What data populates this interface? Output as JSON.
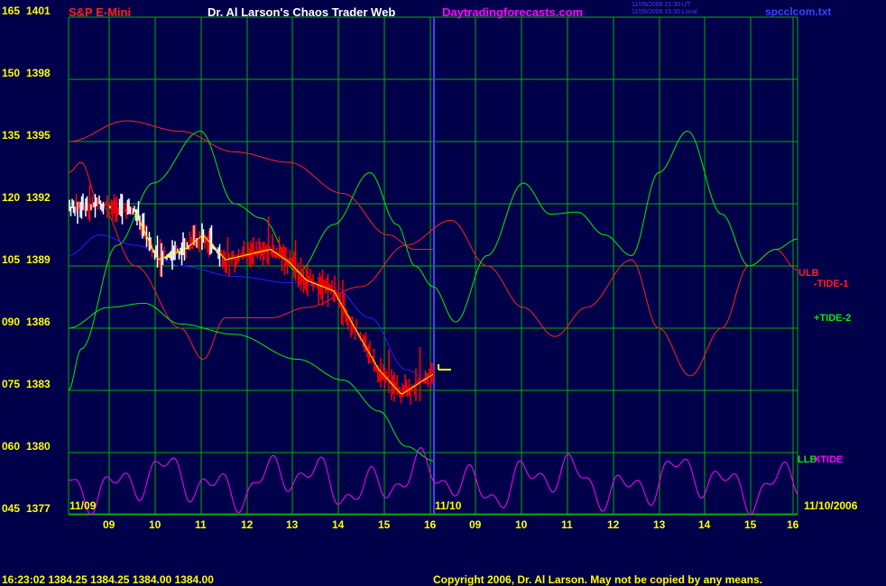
{
  "header": {
    "instrument": "S&P E-Mini",
    "title": "Dr. Al Larson's Chaos Trader Web",
    "site": "Daytradingforecasts.com",
    "stamp_line1": "11/09/2006 21:30 UT",
    "stamp_line2": "11/09/2006 15:30 Local",
    "file": "spcclcom.txt"
  },
  "footer": {
    "quote": "16:23:02  1384.25 1384.25 1384.00 1384.00",
    "copyright": "Copyright 2006, Dr. Al Larson. May not be copied by any means."
  },
  "colors": {
    "background": "#00004a",
    "grid": "#00b000",
    "axis_text": "#ffff00",
    "bars_up": "#ffffff",
    "bars_down": "#ff0000",
    "ma_line": "#ffff00",
    "blue_line": "#2020ff",
    "tide_red": "#ff2020",
    "tide_green": "#00ee00",
    "xtide": "#ff00ff",
    "header_red": "#ff2020",
    "header_white": "#ffffff",
    "header_magenta": "#ff00ff",
    "header_blue": "#4040ff"
  },
  "chart_data": {
    "type": "line",
    "y_axis": {
      "ticks": [
        {
          "left": "165",
          "price": "1401"
        },
        {
          "left": "150",
          "price": "1398"
        },
        {
          "left": "135",
          "price": "1395"
        },
        {
          "left": "120",
          "price": "1392"
        },
        {
          "left": "105",
          "price": "1389"
        },
        {
          "left": "090",
          "price": "1386"
        },
        {
          "left": "075",
          "price": "1383"
        },
        {
          "left": "060",
          "price": "1380"
        },
        {
          "left": "045",
          "price": "1377"
        }
      ],
      "ylim": [
        1377,
        1401
      ]
    },
    "x_axis": {
      "hours": [
        "09",
        "10",
        "11",
        "12",
        "13",
        "14",
        "15",
        "16",
        "09",
        "10",
        "11",
        "12",
        "13",
        "14",
        "15",
        "16"
      ],
      "date_left": "11/09",
      "date_mid": "11/10",
      "date_right": "11/10/2006"
    },
    "series_labels": {
      "ulb": "ULB",
      "tide1": "-TIDE-1",
      "tide2": "+TIDE-2",
      "llb": "LLB",
      "xtide": "XTIDE"
    },
    "last_price": 1384.0
  }
}
